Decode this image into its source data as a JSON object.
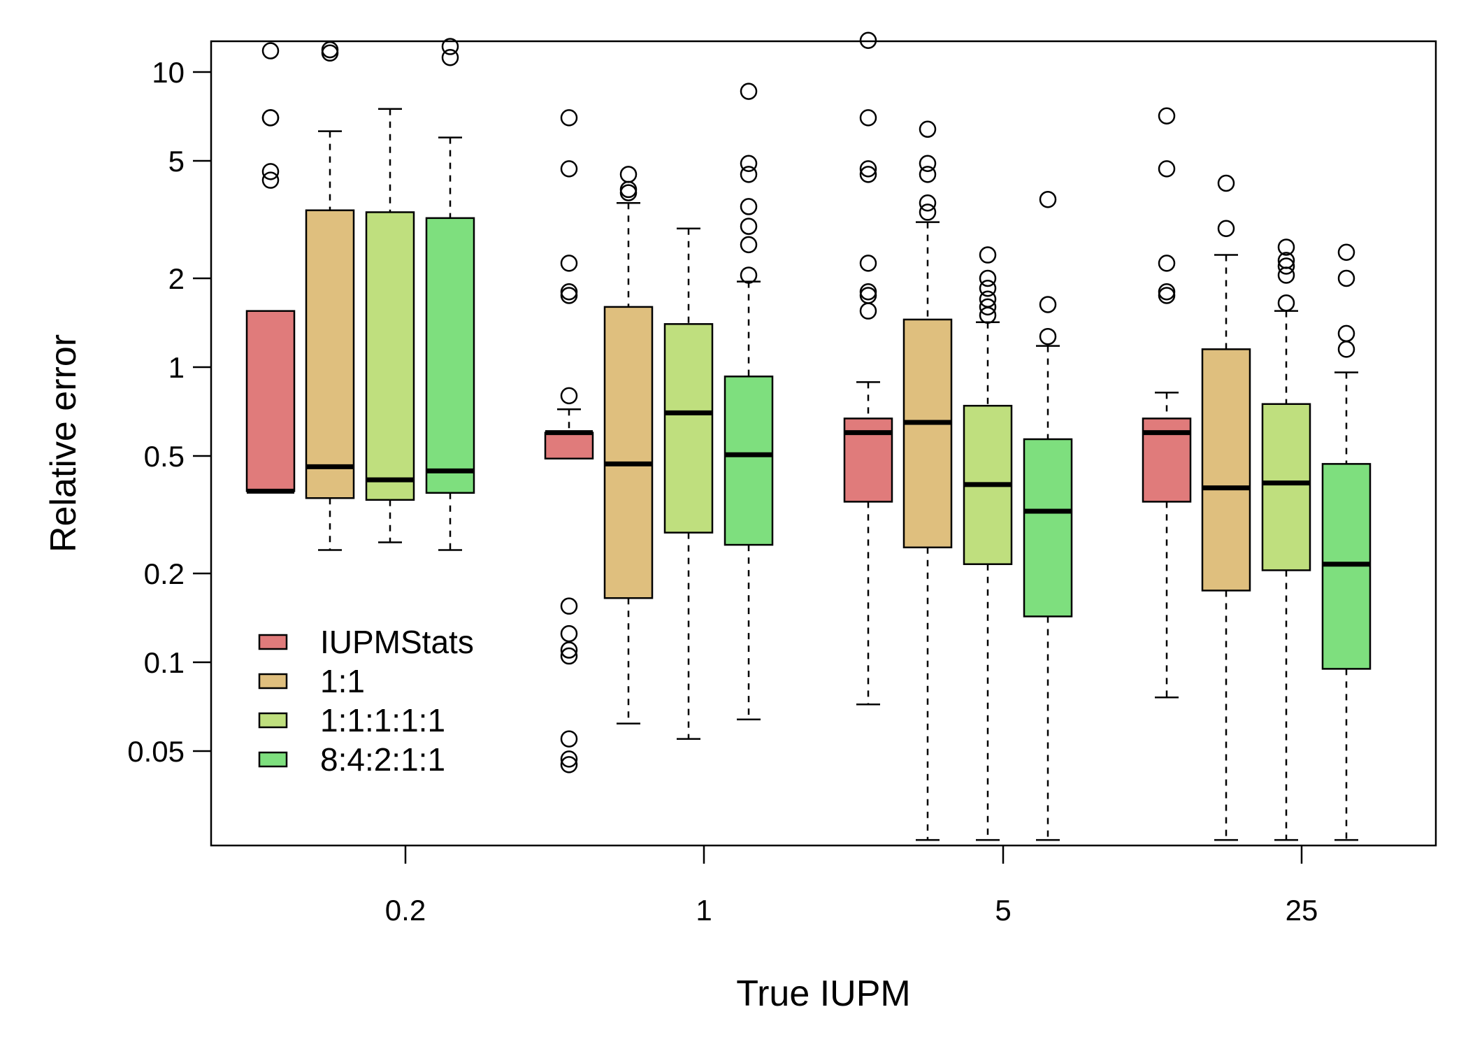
{
  "chart_data": {
    "type": "box",
    "xlabel": "True IUPM",
    "ylabel": "Relative error",
    "y_scale": "log",
    "ylim": [
      0.025,
      13
    ],
    "y_ticks": [
      0.05,
      0.1,
      0.2,
      0.5,
      1,
      2,
      5,
      10
    ],
    "y_tick_labels": [
      "0.05",
      "0.1",
      "0.2",
      "0.5",
      "1",
      "2",
      "5",
      "10"
    ],
    "categories": [
      "0.2",
      "1",
      "5",
      "25"
    ],
    "legend_position": "bottom-left",
    "series": [
      {
        "name": "IUPMStats",
        "color": "#e07b7b",
        "boxes": [
          {
            "whisker_low": 0.38,
            "q1": 0.38,
            "median": 0.38,
            "q3": 1.55,
            "whisker_high": 1.55,
            "outliers": [
              4.3,
              4.6,
              7.0,
              7.0,
              11.8
            ]
          },
          {
            "whisker_low": 0.49,
            "q1": 0.49,
            "median": 0.6,
            "q3": 0.6,
            "whisker_high": 0.72,
            "outliers": [
              0.045,
              0.047,
              0.055,
              0.105,
              0.11,
              0.125,
              0.155,
              0.8,
              1.75,
              1.8,
              2.25,
              4.7,
              7.0
            ]
          },
          {
            "whisker_low": 0.072,
            "q1": 0.35,
            "median": 0.6,
            "q3": 0.67,
            "whisker_high": 0.89,
            "outliers": [
              1.55,
              1.75,
              1.8,
              2.25,
              4.5,
              4.7,
              7.0,
              12.8
            ]
          },
          {
            "whisker_low": 0.076,
            "q1": 0.35,
            "median": 0.6,
            "q3": 0.67,
            "whisker_high": 0.82,
            "outliers": [
              1.75,
              1.8,
              2.25,
              4.7,
              7.1
            ]
          }
        ]
      },
      {
        "name": "1:1",
        "color": "#dfbf7e",
        "boxes": [
          {
            "whisker_low": 0.24,
            "q1": 0.36,
            "median": 0.46,
            "q3": 3.4,
            "whisker_high": 6.3,
            "outliers": [
              11.6,
              11.9
            ]
          },
          {
            "whisker_low": 0.062,
            "q1": 0.165,
            "median": 0.47,
            "q3": 1.6,
            "whisker_high": 3.6,
            "outliers": [
              3.9,
              4.0,
              4.5
            ]
          },
          {
            "whisker_low": 0.025,
            "q1": 0.245,
            "median": 0.65,
            "q3": 1.45,
            "whisker_high": 3.1,
            "outliers": [
              3.35,
              3.6,
              4.5,
              4.9,
              6.4
            ]
          },
          {
            "whisker_low": 0.025,
            "q1": 0.175,
            "median": 0.39,
            "q3": 1.15,
            "whisker_high": 2.4,
            "outliers": [
              2.95,
              4.2
            ]
          }
        ]
      },
      {
        "name": "1:1:1:1:1",
        "color": "#bfdf7e",
        "boxes": [
          {
            "whisker_low": 0.255,
            "q1": 0.355,
            "median": 0.415,
            "q3": 3.35,
            "whisker_high": 7.5,
            "outliers": []
          },
          {
            "whisker_low": 0.055,
            "q1": 0.275,
            "median": 0.7,
            "q3": 1.4,
            "whisker_high": 2.95,
            "outliers": []
          },
          {
            "whisker_low": 0.025,
            "q1": 0.215,
            "median": 0.4,
            "q3": 0.74,
            "whisker_high": 1.42,
            "outliers": [
              1.5,
              1.6,
              1.7,
              1.85,
              2.0,
              2.4
            ]
          },
          {
            "whisker_low": 0.025,
            "q1": 0.205,
            "median": 0.405,
            "q3": 0.75,
            "whisker_high": 1.55,
            "outliers": [
              1.65,
              2.05,
              2.2,
              2.3,
              2.55
            ]
          }
        ]
      },
      {
        "name": "8:4:2:1:1",
        "color": "#7edf7e",
        "boxes": [
          {
            "whisker_low": 0.24,
            "q1": 0.375,
            "median": 0.445,
            "q3": 3.2,
            "whisker_high": 6.0,
            "outliers": [
              11.2,
              12.2
            ]
          },
          {
            "whisker_low": 0.064,
            "q1": 0.25,
            "median": 0.505,
            "q3": 0.93,
            "whisker_high": 1.95,
            "outliers": [
              2.05,
              2.6,
              3.0,
              3.5,
              4.5,
              4.9,
              8.6
            ]
          },
          {
            "whisker_low": 0.025,
            "q1": 0.143,
            "median": 0.325,
            "q3": 0.57,
            "whisker_high": 1.18,
            "outliers": [
              1.27,
              1.63,
              3.7
            ]
          },
          {
            "whisker_low": 0.025,
            "q1": 0.095,
            "median": 0.215,
            "q3": 0.47,
            "whisker_high": 0.96,
            "outliers": [
              1.15,
              1.3,
              2.0,
              2.45
            ]
          }
        ]
      }
    ]
  }
}
